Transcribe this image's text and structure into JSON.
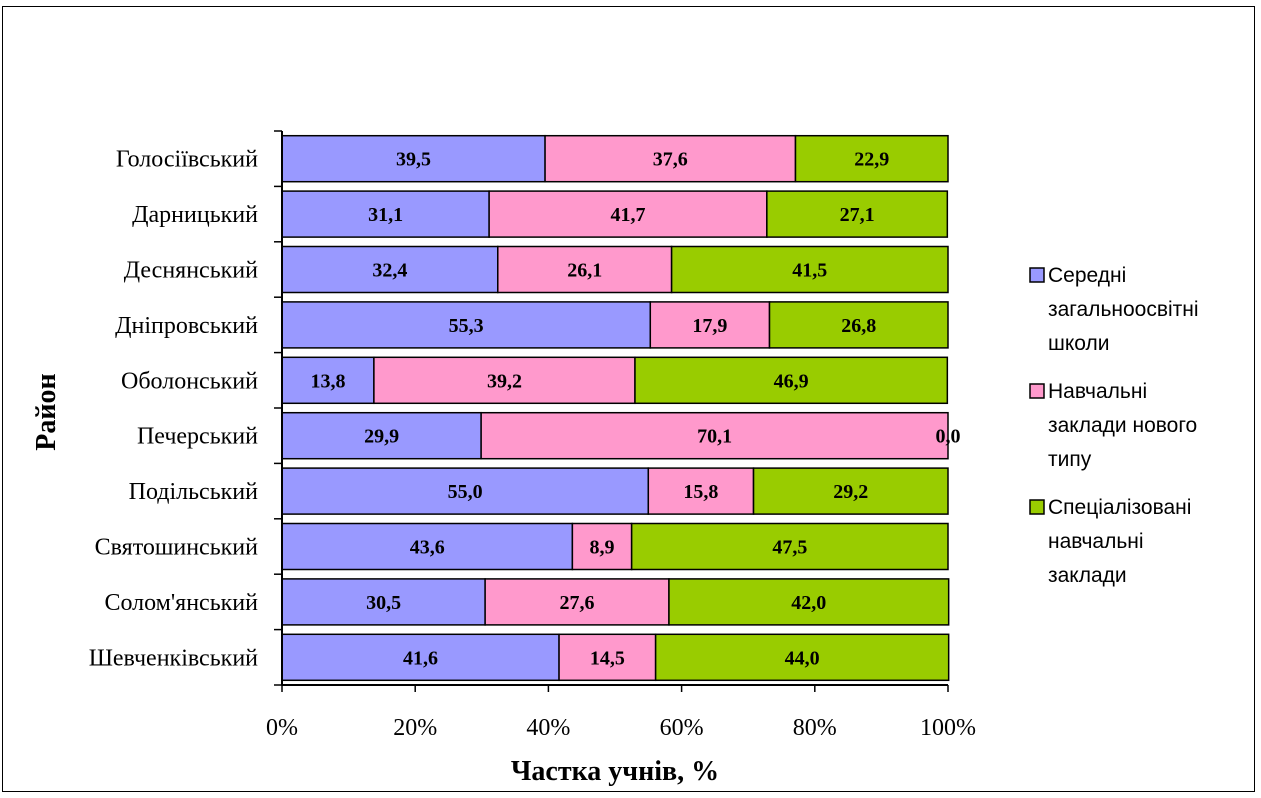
{
  "chart_data": {
    "type": "bar",
    "orientation": "horizontal",
    "stacked": "percent",
    "title": "",
    "xlabel": "Частка учнів, %",
    "ylabel": "Район",
    "xlim": [
      0,
      100
    ],
    "x_ticks": [
      "0%",
      "20%",
      "40%",
      "60%",
      "80%",
      "100%"
    ],
    "categories": [
      "Голосіївський",
      "Дарницький",
      "Деснянський",
      "Дніпровський",
      "Оболонський",
      "Печерський",
      "Подільський",
      "Святошинський",
      "Солом'янський",
      "Шевченківський"
    ],
    "series": [
      {
        "name": "Середні загальноосвітні школи",
        "legend_lines": [
          "Середні",
          "загальноосвітні",
          "школи"
        ],
        "color": "#9999ff",
        "values": [
          39.5,
          31.1,
          32.4,
          55.3,
          13.8,
          29.9,
          55.0,
          43.6,
          30.5,
          41.6
        ],
        "labels": [
          "39,5",
          "31,1",
          "32,4",
          "55,3",
          "13,8",
          "29,9",
          "55,0",
          "43,6",
          "30,5",
          "41,6"
        ]
      },
      {
        "name": "Навчальні заклади нового типу",
        "legend_lines": [
          "Навчальні",
          "заклади нового",
          "типу"
        ],
        "color": "#ff99cc",
        "values": [
          37.6,
          41.7,
          26.1,
          17.9,
          39.2,
          70.1,
          15.8,
          8.9,
          27.6,
          14.5
        ],
        "labels": [
          "37,6",
          "41,7",
          "26,1",
          "17,9",
          "39,2",
          "70,1",
          "15,8",
          "8,9",
          "27,6",
          "14,5"
        ]
      },
      {
        "name": "Спеціалізовані навчальні заклади",
        "legend_lines": [
          "Спеціалізовані",
          "навчальні",
          "заклади"
        ],
        "color": "#99cc00",
        "values": [
          22.9,
          27.1,
          41.5,
          26.8,
          46.9,
          0.0,
          29.2,
          47.5,
          42.0,
          44.0
        ],
        "labels": [
          "22,9",
          "27,1",
          "41,5",
          "26,8",
          "46,9",
          "0,0",
          "29,2",
          "47,5",
          "42,0",
          "44,0"
        ]
      }
    ],
    "grid": false,
    "legend_position": "right"
  }
}
